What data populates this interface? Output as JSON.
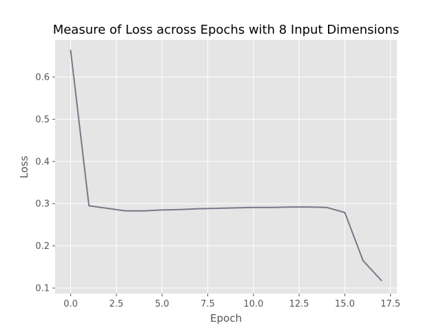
{
  "chart_data": {
    "type": "line",
    "title": "Measure of Loss across Epochs with 8 Input Dimensions",
    "xlabel": "Epoch",
    "ylabel": "Loss",
    "xlim": [
      -0.85,
      17.85
    ],
    "ylim": [
      0.087,
      0.688
    ],
    "x_ticks": [
      0.0,
      2.5,
      5.0,
      7.5,
      10.0,
      12.5,
      15.0,
      17.5
    ],
    "x_tick_labels": [
      "0.0",
      "2.5",
      "5.0",
      "7.5",
      "10.0",
      "12.5",
      "15.0",
      "17.5"
    ],
    "y_ticks": [
      0.1,
      0.2,
      0.3,
      0.4,
      0.5,
      0.6
    ],
    "y_tick_labels": [
      "0.1",
      "0.2",
      "0.3",
      "0.4",
      "0.5",
      "0.6"
    ],
    "grid": true,
    "style": "ggplot",
    "colors": {
      "plot_background": "#e5e5e5",
      "grid": "#ffffff",
      "line": "#777788",
      "title": "#000000",
      "label": "#555555"
    },
    "series": [
      {
        "x": [
          0,
          1,
          2,
          3,
          4,
          5,
          6,
          7,
          8,
          9,
          10,
          11,
          12,
          13,
          14,
          15,
          16,
          17
        ],
        "values": [
          0.663,
          0.295,
          0.289,
          0.283,
          0.283,
          0.285,
          0.286,
          0.288,
          0.289,
          0.29,
          0.291,
          0.291,
          0.292,
          0.292,
          0.291,
          0.279,
          0.165,
          0.118
        ]
      }
    ]
  }
}
